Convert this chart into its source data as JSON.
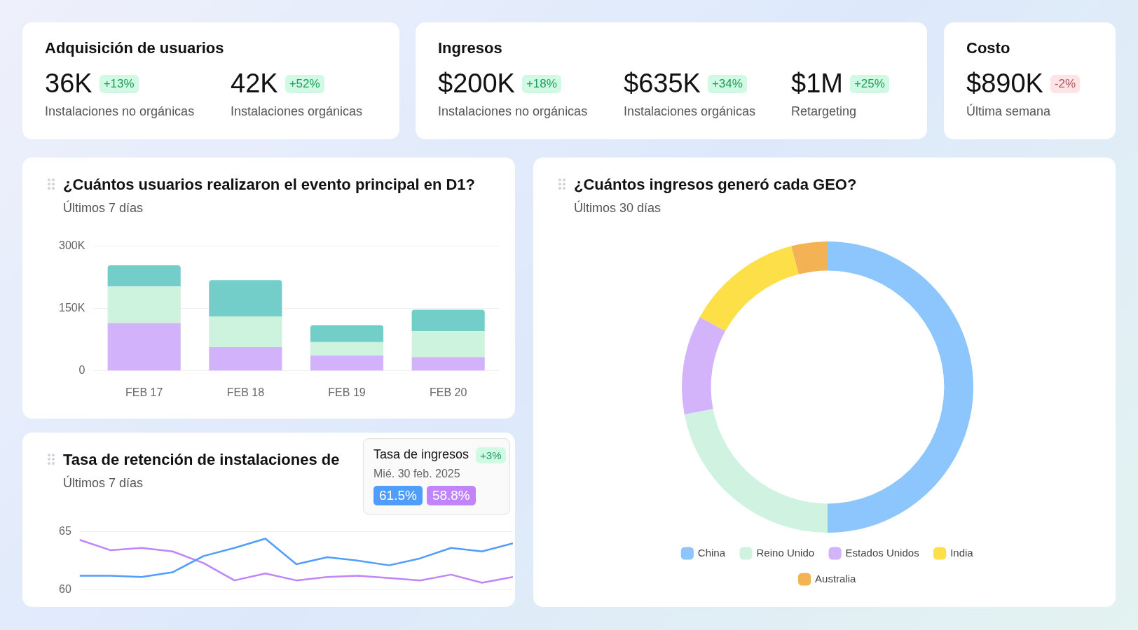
{
  "chart_data": [
    {
      "type": "other",
      "title": "Adquisición de usuarios",
      "annotations": [
        "36K",
        "+13%",
        "Instalaciones no orgánicas",
        "42K",
        "+52%",
        "Instalaciones orgánicas"
      ],
      "colors": [
        "#d1fae5",
        "#d1fae5"
      ]
    },
    {
      "type": "other",
      "title": "Ingresos",
      "annotations": [
        "$200K",
        "+18%",
        "Instalaciones no orgánicas",
        "$635K",
        "+34%",
        "Instalaciones orgánicas",
        "$1M",
        "+25%",
        "Retargeting"
      ],
      "colors": [
        "#d1fae5",
        "#d1fae5",
        "#d1fae5"
      ]
    },
    {
      "type": "other",
      "title": "Costo",
      "annotations": [
        "$890K",
        "-2%",
        "Última semana"
      ],
      "colors": [
        "#ffe4e6"
      ]
    },
    {
      "type": "bar",
      "title": "¿Cuántos usuarios realizaron el evento principal en D1?",
      "subtitle": "Últimos 7 días",
      "categories": [
        "FEB 17",
        "FEB 18",
        "FEB 19",
        "FEB 20"
      ],
      "stacked": true,
      "series": [
        {
          "color": "#d2b3fb",
          "values": [
            115,
            57,
            37,
            33
          ]
        },
        {
          "color": "#cdf3df",
          "values": [
            88,
            74,
            32,
            62
          ]
        },
        {
          "color": "#73cdc8",
          "values": [
            51,
            87,
            41,
            52
          ]
        }
      ],
      "ylim": [
        0,
        300
      ],
      "yticks": [
        {
          "value": 0,
          "label": "0"
        },
        {
          "value": 150,
          "label": "150K"
        },
        {
          "value": 300,
          "label": "300K"
        }
      ],
      "grid": "y",
      "legend": false
    },
    {
      "type": "donut",
      "title": "¿Cuántos ingresos generó cada GEO?",
      "subtitle": "Últimos 30 días",
      "categories": [
        "China",
        "Reino Unido",
        "Estados Unidos",
        "India",
        "Australia"
      ],
      "values": [
        50,
        22,
        11,
        13,
        4
      ],
      "colors": [
        "#8cc6fc",
        "#cff3e0",
        "#d3b4fa",
        "#fde047",
        "#f3b355"
      ],
      "legend": "bottom"
    },
    {
      "type": "line",
      "title": "Tasa de retención de instalaciones de",
      "subtitle": "Últimos 7 días",
      "categories": [
        null,
        null,
        null,
        null,
        null,
        null,
        null,
        null,
        null,
        null,
        null,
        null,
        null,
        null,
        null
      ],
      "series": [
        {
          "color": "#4f9dfc",
          "values": [
            61.2,
            61.2,
            61.1,
            61.5,
            62.9,
            63.6,
            64.4,
            62.2,
            62.8,
            62.5,
            62.1,
            62.7,
            63.6,
            63.3,
            64.0
          ]
        },
        {
          "color": "#c084fc",
          "values": [
            64.3,
            63.4,
            63.6,
            63.3,
            62.3,
            60.8,
            61.4,
            60.8,
            61.1,
            61.2,
            61.0,
            60.8,
            61.3,
            60.6,
            61.1
          ]
        }
      ],
      "ylim": [
        60,
        65
      ],
      "yticks": [
        60,
        65
      ],
      "grid": "y",
      "legend": false,
      "marker": "none",
      "tick_labels": "y",
      "annotations": [
        "Tasa de ingresos",
        "+3%",
        "Mié. 30 feb. 2025",
        "61.5%",
        "58.8%"
      ]
    }
  ]
}
